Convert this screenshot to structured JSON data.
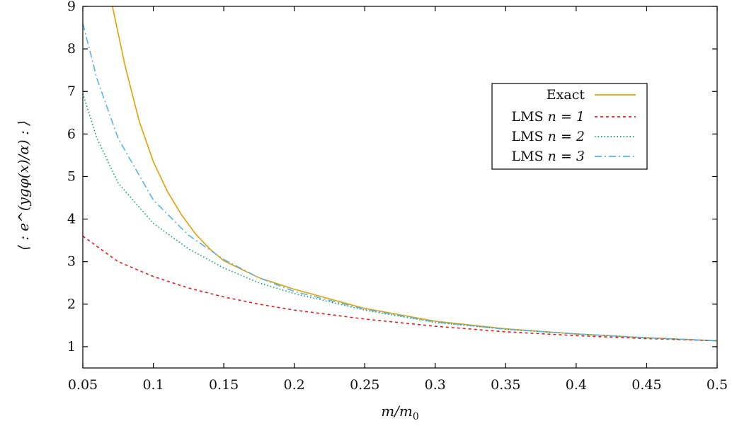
{
  "chart_data": {
    "type": "line",
    "xlabel": "m/m0",
    "xlabel_base": "m/m",
    "xlabel_sub": "0",
    "ylabel": "⟨ : e^(ygφ(x)/α) : ⟩",
    "xlim": [
      0.05,
      0.5
    ],
    "ylim": [
      0.5,
      9
    ],
    "xticks": [
      0.05,
      0.1,
      0.15,
      0.2,
      0.25,
      0.3,
      0.35,
      0.4,
      0.45,
      0.5
    ],
    "xtick_labels": [
      "0.05",
      "0.1",
      "0.15",
      "0.2",
      "0.25",
      "0.3",
      "0.35",
      "0.4",
      "0.45",
      "0.5"
    ],
    "yticks": [
      1,
      2,
      3,
      4,
      5,
      6,
      7,
      8,
      9
    ],
    "ytick_labels": [
      "1",
      "2",
      "3",
      "4",
      "5",
      "6",
      "7",
      "8",
      "9"
    ],
    "grid": false,
    "legend_position": "top-right",
    "series": [
      {
        "name": "Exact",
        "label_parts": [
          "Exact"
        ],
        "color": "#E69F00",
        "dash": "solid",
        "x": [
          0.071,
          0.08,
          0.09,
          0.1,
          0.11,
          0.12,
          0.13,
          0.14,
          0.15,
          0.175,
          0.2,
          0.25,
          0.3,
          0.35,
          0.4,
          0.45,
          0.5
        ],
        "y": [
          9.0,
          7.6,
          6.3,
          5.35,
          4.65,
          4.1,
          3.65,
          3.3,
          3.02,
          2.62,
          2.35,
          1.9,
          1.6,
          1.42,
          1.3,
          1.21,
          1.14
        ]
      },
      {
        "name": "LMS n = 1",
        "label_parts": [
          "LMS",
          "n = 1"
        ],
        "color": "#E41A1C",
        "dash": "dashed",
        "x": [
          0.05,
          0.075,
          0.1,
          0.125,
          0.15,
          0.175,
          0.2,
          0.25,
          0.3,
          0.35,
          0.4,
          0.45,
          0.5
        ],
        "y": [
          3.6,
          3.0,
          2.65,
          2.38,
          2.17,
          2.0,
          1.86,
          1.65,
          1.48,
          1.35,
          1.26,
          1.19,
          1.14
        ]
      },
      {
        "name": "LMS n = 2",
        "label_parts": [
          "LMS",
          "n = 2"
        ],
        "color": "#009E73",
        "dash": "dotted",
        "x": [
          0.05,
          0.06,
          0.075,
          0.1,
          0.125,
          0.15,
          0.175,
          0.2,
          0.25,
          0.3,
          0.35,
          0.4,
          0.45,
          0.5
        ],
        "y": [
          6.95,
          5.9,
          4.85,
          3.9,
          3.3,
          2.85,
          2.5,
          2.25,
          1.86,
          1.57,
          1.41,
          1.3,
          1.21,
          1.14
        ]
      },
      {
        "name": "LMS n = 3",
        "label_parts": [
          "LMS",
          "n = 3"
        ],
        "color": "#56B4E9",
        "dash": "dashdot",
        "x": [
          0.05,
          0.06,
          0.075,
          0.1,
          0.125,
          0.15,
          0.175,
          0.2,
          0.25,
          0.3,
          0.35,
          0.4,
          0.45,
          0.5
        ],
        "y": [
          8.6,
          7.3,
          5.9,
          4.45,
          3.62,
          3.05,
          2.62,
          2.3,
          1.88,
          1.58,
          1.41,
          1.3,
          1.21,
          1.14
        ]
      }
    ]
  }
}
